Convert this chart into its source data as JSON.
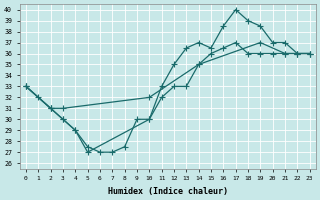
{
  "xlabel": "Humidex (Indice chaleur)",
  "background_color": "#c8e8e8",
  "grid_color": "#ffffff",
  "line_color": "#1a6b6b",
  "xlim": [
    -0.5,
    23.5
  ],
  "ylim": [
    25.5,
    40.5
  ],
  "yticks": [
    26,
    27,
    28,
    29,
    30,
    31,
    32,
    33,
    34,
    35,
    36,
    37,
    38,
    39,
    40
  ],
  "xticks": [
    0,
    1,
    2,
    3,
    4,
    5,
    6,
    7,
    8,
    9,
    10,
    11,
    12,
    13,
    14,
    15,
    16,
    17,
    18,
    19,
    20,
    21,
    22,
    23
  ],
  "series1_x": [
    0,
    2,
    3,
    10,
    14,
    19,
    21,
    22,
    23
  ],
  "series1_y": [
    33,
    31,
    31,
    32,
    35,
    37,
    36,
    36,
    36
  ],
  "series2_x": [
    0,
    1,
    2,
    3,
    4,
    5,
    6,
    7,
    8,
    9,
    10,
    11,
    12,
    13,
    14,
    15,
    16,
    17,
    18,
    19,
    20,
    21,
    22,
    23
  ],
  "series2_y": [
    33,
    32,
    31,
    30,
    29,
    27.5,
    27,
    27,
    27.5,
    30,
    30,
    32,
    33,
    33,
    35,
    36,
    36.5,
    37,
    36,
    36,
    36,
    36,
    36,
    36
  ],
  "series3_x": [
    0,
    2,
    3,
    4,
    5,
    10,
    11,
    12,
    13,
    14,
    15,
    16,
    17,
    18,
    19,
    20,
    21,
    22,
    23
  ],
  "series3_y": [
    33,
    31,
    30,
    29,
    27,
    30,
    33,
    35,
    36.5,
    37,
    36.5,
    38.5,
    40,
    39,
    38.5,
    37,
    37,
    36,
    36
  ]
}
